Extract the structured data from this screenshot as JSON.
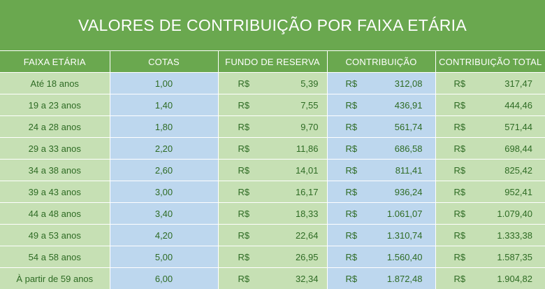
{
  "title": "VALORES DE CONTRIBUIÇÃO POR FAIXA ETÁRIA",
  "headers": [
    "FAIXA ETÁRIA",
    "COTAS",
    "FUNDO DE RESERVA",
    "CONTRIBUIÇÃO",
    "CONTRIBUIÇÃO TOTAL"
  ],
  "currency": "R$",
  "rows": [
    {
      "faixa": "Até 18 anos",
      "cotas": "1,00",
      "fundo": "5,39",
      "contribuicao": "312,08",
      "total": "317,47"
    },
    {
      "faixa": "19 a 23 anos",
      "cotas": "1,40",
      "fundo": "7,55",
      "contribuicao": "436,91",
      "total": "444,46"
    },
    {
      "faixa": "24 a 28 anos",
      "cotas": "1,80",
      "fundo": "9,70",
      "contribuicao": "561,74",
      "total": "571,44"
    },
    {
      "faixa": "29 a 33 anos",
      "cotas": "2,20",
      "fundo": "11,86",
      "contribuicao": "686,58",
      "total": "698,44"
    },
    {
      "faixa": "34 a 38 anos",
      "cotas": "2,60",
      "fundo": "14,01",
      "contribuicao": "811,41",
      "total": "825,42"
    },
    {
      "faixa": "39 a 43 anos",
      "cotas": "3,00",
      "fundo": "16,17",
      "contribuicao": "936,24",
      "total": "952,41"
    },
    {
      "faixa": "44 a 48 anos",
      "cotas": "3,40",
      "fundo": "18,33",
      "contribuicao": "1.061,07",
      "total": "1.079,40"
    },
    {
      "faixa": "49 a 53 anos",
      "cotas": "4,20",
      "fundo": "22,64",
      "contribuicao": "1.310,74",
      "total": "1.333,38"
    },
    {
      "faixa": "54 a 58 anos",
      "cotas": "5,00",
      "fundo": "26,95",
      "contribuicao": "1.560,40",
      "total": "1.587,35"
    },
    {
      "faixa": "À partir de 59 anos",
      "cotas": "6,00",
      "fundo": "32,34",
      "contribuicao": "1.872,48",
      "total": "1.904,82"
    }
  ],
  "colors": {
    "header": "#6aa84f",
    "green_cell": "#c6e0b4",
    "blue_cell": "#bdd7ee",
    "text": "#2e6b24"
  }
}
